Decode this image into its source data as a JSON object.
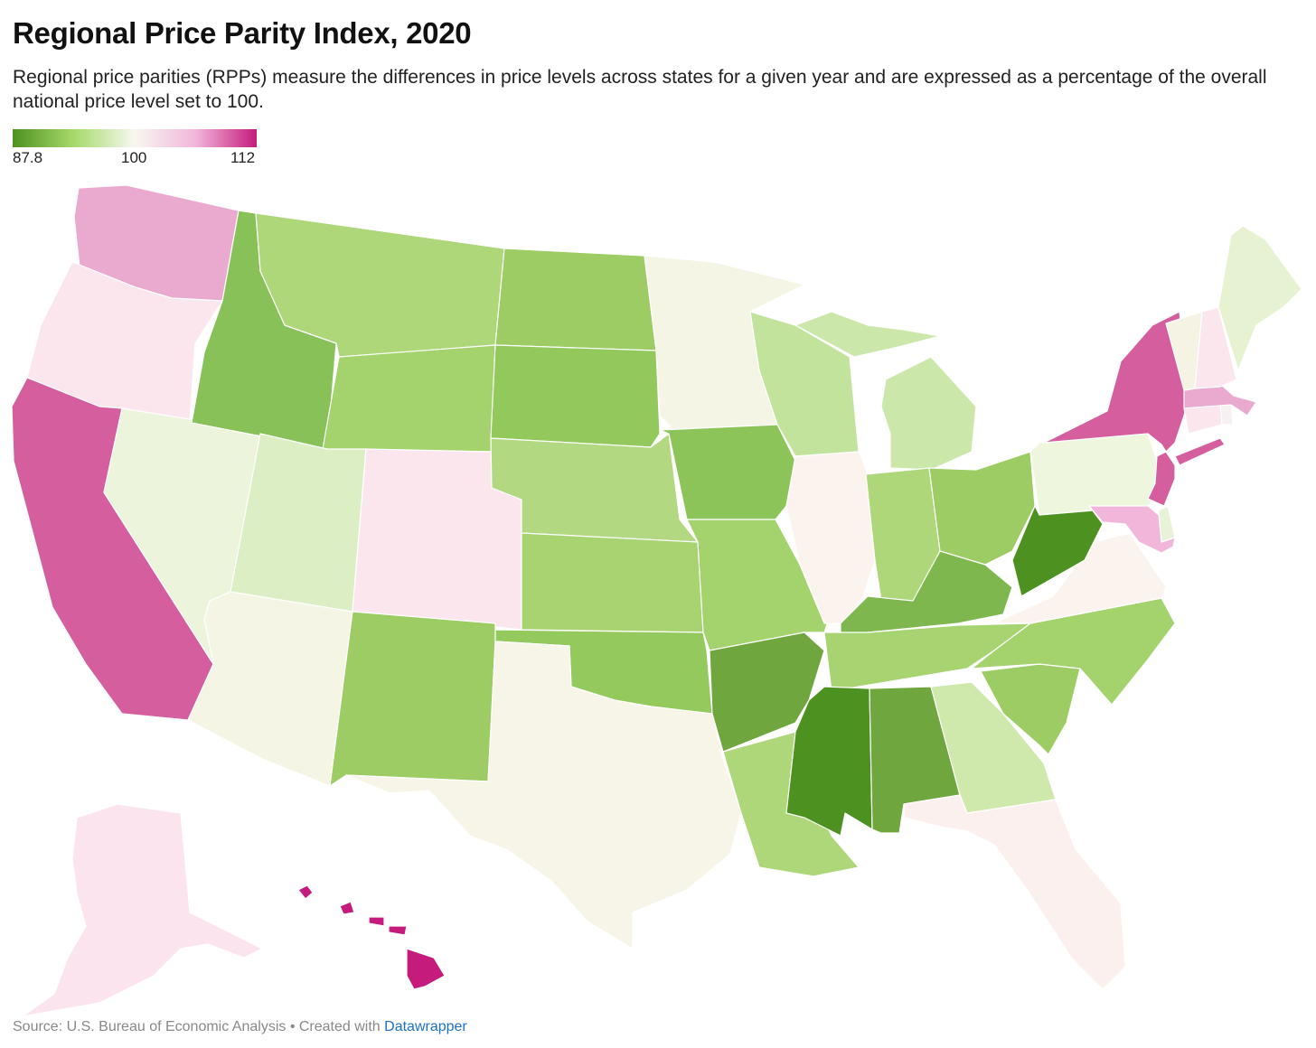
{
  "title": "Regional Price Parity Index, 2020",
  "subtitle": "Regional price parities (RPPs) measure the differences in price levels across states for a given year and are expressed as a percentage of the overall national price level set to 100.",
  "legend": {
    "min_label": "87.8",
    "mid_label": "100",
    "max_label": "112",
    "colors": [
      "#4d9221",
      "#a6d96a",
      "#f7f7f0",
      "#f1b6da",
      "#c51b7d"
    ]
  },
  "footer": {
    "source": "Source: U.S. Bureau of Economic Analysis",
    "separator": " • ",
    "created": "Created with ",
    "tool": "Datawrapper"
  },
  "chart_data": {
    "type": "choropleth",
    "scale": {
      "min": 87.8,
      "mid": 100,
      "max": 112
    },
    "states": [
      {
        "code": "WA",
        "color": "#eaaad0"
      },
      {
        "code": "OR",
        "color": "#fbe6ee"
      },
      {
        "code": "CA",
        "color": "#d55f9e"
      },
      {
        "code": "NV",
        "color": "#ecf4dc"
      },
      {
        "code": "ID",
        "color": "#88c158"
      },
      {
        "code": "MT",
        "color": "#aed77a"
      },
      {
        "code": "WY",
        "color": "#a4d26d"
      },
      {
        "code": "UT",
        "color": "#dcefc4"
      },
      {
        "code": "AZ",
        "color": "#f5f5e6"
      },
      {
        "code": "CO",
        "color": "#fbe6ee"
      },
      {
        "code": "NM",
        "color": "#9ccc63"
      },
      {
        "code": "ND",
        "color": "#9ccc63"
      },
      {
        "code": "SD",
        "color": "#93c85c"
      },
      {
        "code": "NE",
        "color": "#b2d981"
      },
      {
        "code": "KS",
        "color": "#a7d471"
      },
      {
        "code": "OK",
        "color": "#94c95d"
      },
      {
        "code": "TX",
        "color": "#f6f5e8"
      },
      {
        "code": "MN",
        "color": "#f4f5e4"
      },
      {
        "code": "IA",
        "color": "#8cc459"
      },
      {
        "code": "MO",
        "color": "#a4d26d"
      },
      {
        "code": "AR",
        "color": "#6fa63e"
      },
      {
        "code": "LA",
        "color": "#aed77a"
      },
      {
        "code": "WI",
        "color": "#c2e39b"
      },
      {
        "code": "IL",
        "color": "#fbf3ee"
      },
      {
        "code": "MI",
        "color": "#cbe7a9"
      },
      {
        "code": "IN",
        "color": "#aed77a"
      },
      {
        "code": "OH",
        "color": "#9ccc63"
      },
      {
        "code": "KY",
        "color": "#7eb74d"
      },
      {
        "code": "TN",
        "color": "#a7d471"
      },
      {
        "code": "MS",
        "color": "#4d9221"
      },
      {
        "code": "AL",
        "color": "#6fa63e"
      },
      {
        "code": "GA",
        "color": "#cfe9ad"
      },
      {
        "code": "FL",
        "color": "#fcf0ee"
      },
      {
        "code": "SC",
        "color": "#9ccc63"
      },
      {
        "code": "NC",
        "color": "#a4d26d"
      },
      {
        "code": "VA",
        "color": "#fbf3ee"
      },
      {
        "code": "WV",
        "color": "#4d9221"
      },
      {
        "code": "PA",
        "color": "#eff6de"
      },
      {
        "code": "NY",
        "color": "#d55f9e"
      },
      {
        "code": "NJ",
        "color": "#d55f9e"
      },
      {
        "code": "DE",
        "color": "#e8f2d6"
      },
      {
        "code": "MD",
        "color": "#f1b6da"
      },
      {
        "code": "CT",
        "color": "#fbe6ee"
      },
      {
        "code": "RI",
        "color": "#f7f0f0"
      },
      {
        "code": "MA",
        "color": "#eaaad0"
      },
      {
        "code": "VT",
        "color": "#f4f3e4"
      },
      {
        "code": "NH",
        "color": "#fbe6ee"
      },
      {
        "code": "ME",
        "color": "#e6f2d2"
      },
      {
        "code": "AK",
        "color": "#fce4ef"
      },
      {
        "code": "HI",
        "color": "#c51b7d"
      }
    ]
  }
}
